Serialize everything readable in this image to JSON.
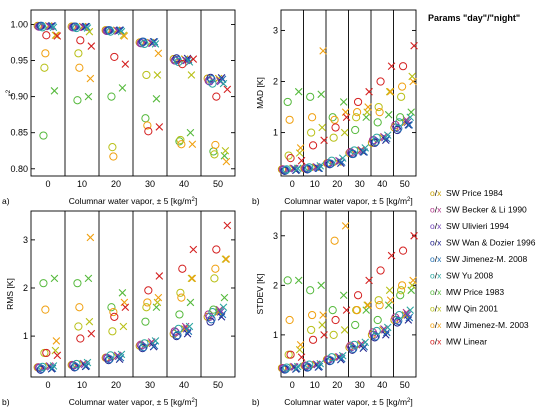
{
  "legend": {
    "title": "Params \"day\"/\"night\"",
    "entries": [
      {
        "label": "SW Price 1984",
        "color": "#c8a000",
        "marks": "o/x"
      },
      {
        "label": "SW Becker & Li 1990",
        "color": "#b0368a",
        "marks": "o/x"
      },
      {
        "label": "SW Ulivieri 1994",
        "color": "#6f3fb8",
        "marks": "o/x"
      },
      {
        "label": "SW Wan & Dozier 1996",
        "color": "#23238f",
        "marks": "o/x"
      },
      {
        "label": "SW Jimenez-M. 2008",
        "color": "#1f6fb4",
        "marks": "o/x"
      },
      {
        "label": "SW Yu 2008",
        "color": "#2aa6a0",
        "marks": "o/x"
      },
      {
        "label": "MW Price 1983",
        "color": "#55b93c",
        "marks": "o/x"
      },
      {
        "label": "MW Qin 2001",
        "color": "#b8c018",
        "marks": "o/x"
      },
      {
        "label": "MW Jimenez-M. 2003",
        "color": "#f0a010",
        "marks": "o/x"
      },
      {
        "label": "MW Linear",
        "color": "#d42020",
        "marks": "o/x"
      }
    ]
  },
  "chart_data": [
    {
      "type": "scatter",
      "panel": "a)",
      "ylabel": "r²",
      "xlabel": "Columnar water vapor, ± 5 [kg/m²]",
      "categories": [
        "0",
        "10",
        "20",
        "30",
        "40",
        "50"
      ],
      "ylim": [
        0.79,
        1.02
      ],
      "yticks": [
        "0.80",
        "0.85",
        "0.90",
        "0.95",
        "1.00"
      ],
      "ytick_values": [
        0.8,
        0.85,
        0.9,
        0.95,
        1.0
      ],
      "series": [
        {
          "o": [
            0.998,
            0.997,
            0.992,
            0.975,
            0.952,
            0.925
          ],
          "x": [
            0.998,
            0.997,
            0.992,
            0.975,
            0.952,
            0.925
          ]
        },
        {
          "o": [
            0.997,
            0.996,
            0.991,
            0.974,
            0.95,
            0.922
          ],
          "x": [
            0.997,
            0.996,
            0.991,
            0.974,
            0.95,
            0.922
          ]
        },
        {
          "o": [
            0.997,
            0.996,
            0.991,
            0.974,
            0.95,
            0.921
          ],
          "x": [
            0.997,
            0.996,
            0.991,
            0.974,
            0.95,
            0.921
          ]
        },
        {
          "o": [
            0.998,
            0.997,
            0.992,
            0.976,
            0.953,
            0.926
          ],
          "x": [
            0.998,
            0.997,
            0.992,
            0.976,
            0.953,
            0.926
          ]
        },
        {
          "o": [
            0.998,
            0.997,
            0.992,
            0.976,
            0.951,
            0.924
          ],
          "x": [
            0.998,
            0.997,
            0.992,
            0.976,
            0.951,
            0.924
          ]
        },
        {
          "o": [
            0.996,
            0.995,
            0.99,
            0.973,
            0.948,
            0.918
          ],
          "x": [
            0.996,
            0.995,
            0.99,
            0.973,
            0.948,
            0.918
          ]
        },
        {
          "o": [
            0.846,
            0.895,
            0.9,
            0.87,
            0.838,
            0.824
          ],
          "x": [
            0.908,
            0.9,
            0.912,
            0.897,
            0.85,
            0.818
          ]
        },
        {
          "o": [
            0.94,
            0.96,
            0.83,
            0.93,
            0.84,
            0.82
          ],
          "x": [
            0.985,
            0.99,
            0.985,
            0.93,
            0.93,
            0.825
          ]
        },
        {
          "o": [
            0.96,
            0.94,
            0.817,
            0.86,
            0.834,
            0.833
          ],
          "x": [
            0.985,
            0.925,
            0.984,
            0.96,
            0.834,
            0.81
          ]
        },
        {
          "o": [
            0.985,
            0.978,
            0.955,
            0.852,
            0.945,
            0.9
          ],
          "x": [
            0.984,
            0.97,
            0.945,
            0.858,
            0.952,
            0.91
          ]
        }
      ]
    },
    {
      "type": "scatter",
      "panel": "b)",
      "ylabel": "MAD [K]",
      "xlabel": "Columnar water vapor, ± 5 [kg/m²]",
      "categories": [
        "0",
        "10",
        "20",
        "30",
        "40",
        "50"
      ],
      "ylim": [
        0.15,
        3.4
      ],
      "yticks": [
        "1",
        "2",
        "3"
      ],
      "ytick_values": [
        1,
        2,
        3
      ],
      "series": [
        {
          "o": [
            0.28,
            0.3,
            0.4,
            0.6,
            0.8,
            1.1
          ],
          "x": [
            0.3,
            0.32,
            0.42,
            0.65,
            0.9,
            1.2
          ]
        },
        {
          "o": [
            0.28,
            0.3,
            0.4,
            0.62,
            0.85,
            1.15
          ],
          "x": [
            0.3,
            0.33,
            0.45,
            0.66,
            0.92,
            1.25
          ]
        },
        {
          "o": [
            0.27,
            0.3,
            0.4,
            0.6,
            0.85,
            1.1
          ],
          "x": [
            0.29,
            0.32,
            0.44,
            0.64,
            0.9,
            1.2
          ]
        },
        {
          "o": [
            0.25,
            0.28,
            0.38,
            0.58,
            0.8,
            1.05
          ],
          "x": [
            0.26,
            0.3,
            0.4,
            0.62,
            0.85,
            1.15
          ]
        },
        {
          "o": [
            0.26,
            0.29,
            0.39,
            0.58,
            0.82,
            1.08
          ],
          "x": [
            0.27,
            0.3,
            0.42,
            0.62,
            0.88,
            1.15
          ]
        },
        {
          "o": [
            0.28,
            0.32,
            0.45,
            0.65,
            0.9,
            1.2
          ],
          "x": [
            0.3,
            0.35,
            0.5,
            0.7,
            0.95,
            1.3
          ]
        },
        {
          "o": [
            1.6,
            1.7,
            1.3,
            1.05,
            1.2,
            1.3
          ],
          "x": [
            1.8,
            1.75,
            1.6,
            1.3,
            1.35,
            1.4
          ]
        },
        {
          "o": [
            0.55,
            1.0,
            0.9,
            1.3,
            1.5,
            1.7
          ],
          "x": [
            0.6,
            1.1,
            1.0,
            1.4,
            1.8,
            2.1
          ]
        },
        {
          "o": [
            1.25,
            1.3,
            1.25,
            1.4,
            1.4,
            1.9
          ],
          "x": [
            0.7,
            2.6,
            1.4,
            1.5,
            1.8,
            2.0
          ]
        },
        {
          "o": [
            0.5,
            0.75,
            1.1,
            1.6,
            2.0,
            2.3
          ],
          "x": [
            0.45,
            0.85,
            1.3,
            1.8,
            2.3,
            2.7
          ]
        }
      ]
    },
    {
      "type": "scatter",
      "panel": "b)",
      "ylabel": "RMS [K]",
      "xlabel": "Columnar water vapor, ± 5 [kg/m²]",
      "categories": [
        "0",
        "10",
        "20",
        "30",
        "40",
        "50"
      ],
      "ylim": [
        0.15,
        3.6
      ],
      "yticks": [
        "1",
        "2",
        "3"
      ],
      "ytick_values": [
        1,
        2,
        3
      ],
      "series": [
        {
          "o": [
            0.35,
            0.4,
            0.55,
            0.8,
            1.05,
            1.4
          ],
          "x": [
            0.37,
            0.42,
            0.58,
            0.85,
            1.15,
            1.5
          ]
        },
        {
          "o": [
            0.35,
            0.4,
            0.55,
            0.82,
            1.1,
            1.45
          ],
          "x": [
            0.38,
            0.43,
            0.6,
            0.88,
            1.2,
            1.55
          ]
        },
        {
          "o": [
            0.34,
            0.39,
            0.54,
            0.8,
            1.08,
            1.4
          ],
          "x": [
            0.36,
            0.41,
            0.58,
            0.85,
            1.15,
            1.5
          ]
        },
        {
          "o": [
            0.3,
            0.35,
            0.5,
            0.75,
            1.0,
            1.3
          ],
          "x": [
            0.32,
            0.37,
            0.52,
            0.78,
            1.05,
            1.4
          ]
        },
        {
          "o": [
            0.32,
            0.36,
            0.52,
            0.77,
            1.02,
            1.35
          ],
          "x": [
            0.33,
            0.38,
            0.55,
            0.8,
            1.1,
            1.45
          ]
        },
        {
          "o": [
            0.36,
            0.42,
            0.6,
            0.85,
            1.15,
            1.5
          ],
          "x": [
            0.38,
            0.45,
            0.62,
            0.9,
            1.2,
            1.6
          ]
        },
        {
          "o": [
            2.1,
            2.1,
            1.6,
            1.3,
            1.45,
            1.55
          ],
          "x": [
            2.2,
            2.2,
            1.9,
            1.6,
            1.7,
            1.8
          ]
        },
        {
          "o": [
            0.65,
            1.2,
            1.1,
            1.6,
            1.9,
            2.2
          ],
          "x": [
            0.7,
            1.3,
            1.2,
            1.7,
            2.2,
            2.6
          ]
        },
        {
          "o": [
            1.55,
            1.6,
            1.5,
            1.7,
            1.8,
            2.4
          ],
          "x": [
            0.9,
            3.05,
            1.7,
            1.8,
            2.2,
            2.6
          ]
        },
        {
          "o": [
            0.65,
            0.95,
            1.4,
            1.95,
            2.4,
            2.8
          ],
          "x": [
            0.6,
            1.05,
            1.6,
            2.25,
            2.8,
            3.3
          ]
        }
      ]
    },
    {
      "type": "scatter",
      "panel": "b)",
      "ylabel": "STDEV [K]",
      "xlabel": "Columnar water vapor, ± 5 [kg/m²]",
      "categories": [
        "0",
        "10",
        "20",
        "30",
        "40",
        "50"
      ],
      "ylim": [
        0.15,
        3.5
      ],
      "yticks": [
        "1",
        "2",
        "3"
      ],
      "ytick_values": [
        1,
        2,
        3
      ],
      "series": [
        {
          "o": [
            0.33,
            0.38,
            0.5,
            0.75,
            1.0,
            1.3
          ],
          "x": [
            0.35,
            0.4,
            0.55,
            0.8,
            1.1,
            1.4
          ]
        },
        {
          "o": [
            0.33,
            0.38,
            0.5,
            0.78,
            1.05,
            1.35
          ],
          "x": [
            0.36,
            0.41,
            0.56,
            0.82,
            1.12,
            1.45
          ]
        },
        {
          "o": [
            0.32,
            0.37,
            0.5,
            0.75,
            1.0,
            1.3
          ],
          "x": [
            0.35,
            0.4,
            0.55,
            0.8,
            1.1,
            1.4
          ]
        },
        {
          "o": [
            0.3,
            0.34,
            0.47,
            0.7,
            0.95,
            1.25
          ],
          "x": [
            0.31,
            0.35,
            0.5,
            0.73,
            1.0,
            1.3
          ]
        },
        {
          "o": [
            0.31,
            0.35,
            0.48,
            0.72,
            0.97,
            1.28
          ],
          "x": [
            0.32,
            0.36,
            0.52,
            0.76,
            1.05,
            1.35
          ]
        },
        {
          "o": [
            0.34,
            0.4,
            0.55,
            0.8,
            1.08,
            1.4
          ],
          "x": [
            0.36,
            0.42,
            0.58,
            0.85,
            1.15,
            1.5
          ]
        },
        {
          "o": [
            2.1,
            1.9,
            1.5,
            1.2,
            1.3,
            1.8
          ],
          "x": [
            2.1,
            2.0,
            1.8,
            1.5,
            1.6,
            1.9
          ]
        },
        {
          "o": [
            0.6,
            1.1,
            1.0,
            1.5,
            1.7,
            1.9
          ],
          "x": [
            0.7,
            1.2,
            1.1,
            1.6,
            1.9,
            2.0
          ]
        },
        {
          "o": [
            1.3,
            1.4,
            2.9,
            1.5,
            1.6,
            2.0
          ],
          "x": [
            0.8,
            1.4,
            3.2,
            1.6,
            1.7,
            2.1
          ]
        },
        {
          "o": [
            0.6,
            0.9,
            1.3,
            1.8,
            2.3,
            2.7
          ],
          "x": [
            0.55,
            1.0,
            1.5,
            2.1,
            2.6,
            3.0
          ]
        }
      ]
    }
  ]
}
